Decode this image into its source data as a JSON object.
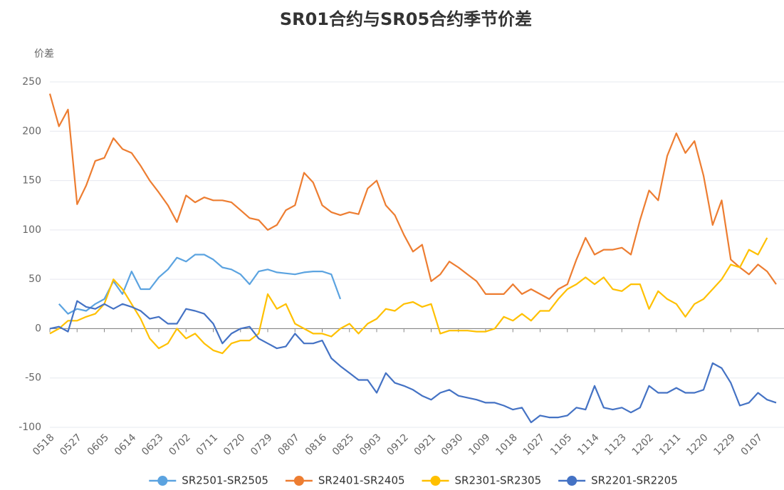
{
  "chart_data": {
    "type": "line",
    "title": "SR01合约与SR05合约季节价差",
    "y_label": "价差",
    "categories": [
      "0518",
      null,
      null,
      "0527",
      null,
      null,
      "0605",
      null,
      null,
      "0614",
      null,
      null,
      "0623",
      null,
      null,
      "0702",
      null,
      null,
      "0711",
      null,
      null,
      "0720",
      null,
      null,
      "0729",
      null,
      null,
      "0807",
      null,
      null,
      "0816",
      null,
      null,
      "0825",
      null,
      null,
      "0903",
      null,
      null,
      "0912",
      null,
      null,
      "0921",
      null,
      null,
      "0930",
      null,
      null,
      "1009",
      null,
      null,
      "1018",
      null,
      null,
      "1027",
      null,
      null,
      "1105",
      null,
      null,
      "1114",
      null,
      null,
      "1123",
      null,
      null,
      "1202",
      null,
      null,
      "1211",
      null,
      null,
      "1220",
      null,
      null,
      "1229",
      null,
      null,
      "0107",
      null,
      null
    ],
    "ylim": [
      -100,
      250
    ],
    "yticks": [
      -100,
      -50,
      0,
      50,
      100,
      150,
      200,
      250
    ],
    "grid": true,
    "legend": "bottom",
    "series": [
      {
        "name": "SR2501-SR2505",
        "color": "#5ba3e0",
        "values": [
          null,
          25,
          15,
          20,
          18,
          25,
          30,
          48,
          35,
          58,
          40,
          40,
          52,
          60,
          72,
          68,
          75,
          75,
          70,
          62,
          60,
          55,
          45,
          58,
          60,
          57,
          56,
          55,
          57,
          58,
          58,
          55,
          30,
          null,
          null,
          null,
          null,
          null,
          null,
          null,
          null,
          null,
          null,
          null,
          null,
          null,
          null,
          null,
          null,
          null,
          null,
          null,
          null,
          null,
          null,
          null,
          null,
          null,
          null,
          null,
          null,
          null,
          null,
          null,
          null,
          null,
          null,
          null,
          null,
          null,
          null,
          null,
          null,
          null,
          null,
          null,
          null,
          null,
          null,
          null,
          null
        ]
      },
      {
        "name": "SR2401-SR2405",
        "color": "#ed7d31",
        "values": [
          238,
          205,
          222,
          126,
          145,
          170,
          173,
          193,
          182,
          178,
          165,
          150,
          138,
          125,
          108,
          135,
          128,
          133,
          130,
          130,
          128,
          120,
          112,
          110,
          100,
          105,
          120,
          125,
          158,
          148,
          125,
          118,
          115,
          118,
          116,
          142,
          150,
          125,
          115,
          95,
          78,
          85,
          48,
          55,
          68,
          62,
          55,
          48,
          35,
          35,
          35,
          45,
          35,
          40,
          35,
          30,
          40,
          45,
          70,
          92,
          75,
          80,
          80,
          82,
          75,
          110,
          140,
          130,
          175,
          198,
          178,
          190,
          155,
          105,
          130,
          70,
          62,
          55,
          65,
          58,
          45
        ]
      },
      {
        "name": "SR2301-SR2305",
        "color": "#ffc000",
        "values": [
          -5,
          0,
          8,
          8,
          12,
          15,
          25,
          50,
          40,
          25,
          10,
          -10,
          -20,
          -15,
          0,
          -10,
          -5,
          -15,
          -22,
          -25,
          -15,
          -12,
          -12,
          -5,
          35,
          20,
          25,
          5,
          0,
          -5,
          -5,
          -8,
          0,
          5,
          -5,
          5,
          10,
          20,
          18,
          25,
          27,
          22,
          25,
          -5,
          -2,
          -2,
          -2,
          -3,
          -3,
          0,
          12,
          8,
          15,
          8,
          18,
          18,
          30,
          40,
          45,
          52,
          45,
          52,
          40,
          38,
          45,
          45,
          20,
          38,
          30,
          25,
          12,
          25,
          30,
          40,
          50,
          65,
          62,
          80,
          75,
          92,
          null
        ]
      },
      {
        "name": "SR2201-SR2205",
        "color": "#4472c4",
        "values": [
          0,
          2,
          -3,
          28,
          22,
          20,
          25,
          20,
          25,
          22,
          18,
          10,
          12,
          5,
          5,
          20,
          18,
          15,
          5,
          -15,
          -5,
          0,
          2,
          -10,
          -15,
          -20,
          -18,
          -5,
          -15,
          -15,
          -12,
          -30,
          -38,
          -45,
          -52,
          -52,
          -65,
          -45,
          -55,
          -58,
          -62,
          -68,
          -72,
          -65,
          -62,
          -68,
          -70,
          -72,
          -75,
          -75,
          -78,
          -82,
          -80,
          -95,
          -88,
          -90,
          -90,
          -88,
          -80,
          -82,
          -58,
          -80,
          -82,
          -80,
          -85,
          -80,
          -58,
          -65,
          -65,
          -60,
          -65,
          -65,
          -62,
          -35,
          -40,
          -55,
          -78,
          -75,
          -65,
          -72,
          -75
        ]
      }
    ]
  }
}
